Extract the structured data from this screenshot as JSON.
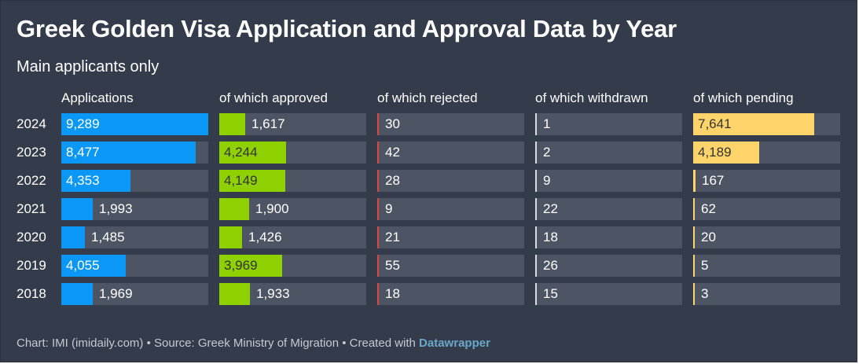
{
  "title": "Greek Golden Visa Application and Approval Data by Year",
  "subtitle": "Main applicants only",
  "footer": {
    "chart_credit": "Chart: IMI (imidaily.com)",
    "separator": " • ",
    "source": "Source: Greek Ministry of Migration",
    "created_with": "Created with ",
    "tool": "Datawrapper"
  },
  "colors": {
    "background": "#343c4c",
    "track": "#4d5565",
    "applications": "#0a97f5",
    "approved": "#8fd000",
    "rejected": "#e0473f",
    "withdrawn": "#dcdcdc",
    "pending": "#ffd46a"
  },
  "chart_data": {
    "type": "table",
    "title": "Greek Golden Visa Application and Approval Data by Year",
    "subtitle": "Main applicants only",
    "categories": [
      "2024",
      "2023",
      "2022",
      "2021",
      "2020",
      "2019",
      "2018"
    ],
    "columns": [
      {
        "name": "Applications",
        "key": "applications",
        "values": [
          9289,
          8477,
          4353,
          1993,
          1485,
          4055,
          1969
        ],
        "max": 9289
      },
      {
        "name": "of which approved",
        "key": "approved",
        "values": [
          1617,
          4244,
          4149,
          1900,
          1426,
          3969,
          1933
        ],
        "max": 9289
      },
      {
        "name": "of which rejected",
        "key": "rejected",
        "values": [
          30,
          42,
          28,
          9,
          21,
          55,
          18
        ],
        "max": 9289
      },
      {
        "name": "of which withdrawn",
        "key": "withdrawn",
        "values": [
          1,
          2,
          9,
          22,
          18,
          26,
          15
        ],
        "max": 9289
      },
      {
        "name": "of which pending",
        "key": "pending",
        "values": [
          7641,
          4189,
          167,
          62,
          20,
          5,
          3
        ],
        "max": 9289
      }
    ]
  }
}
